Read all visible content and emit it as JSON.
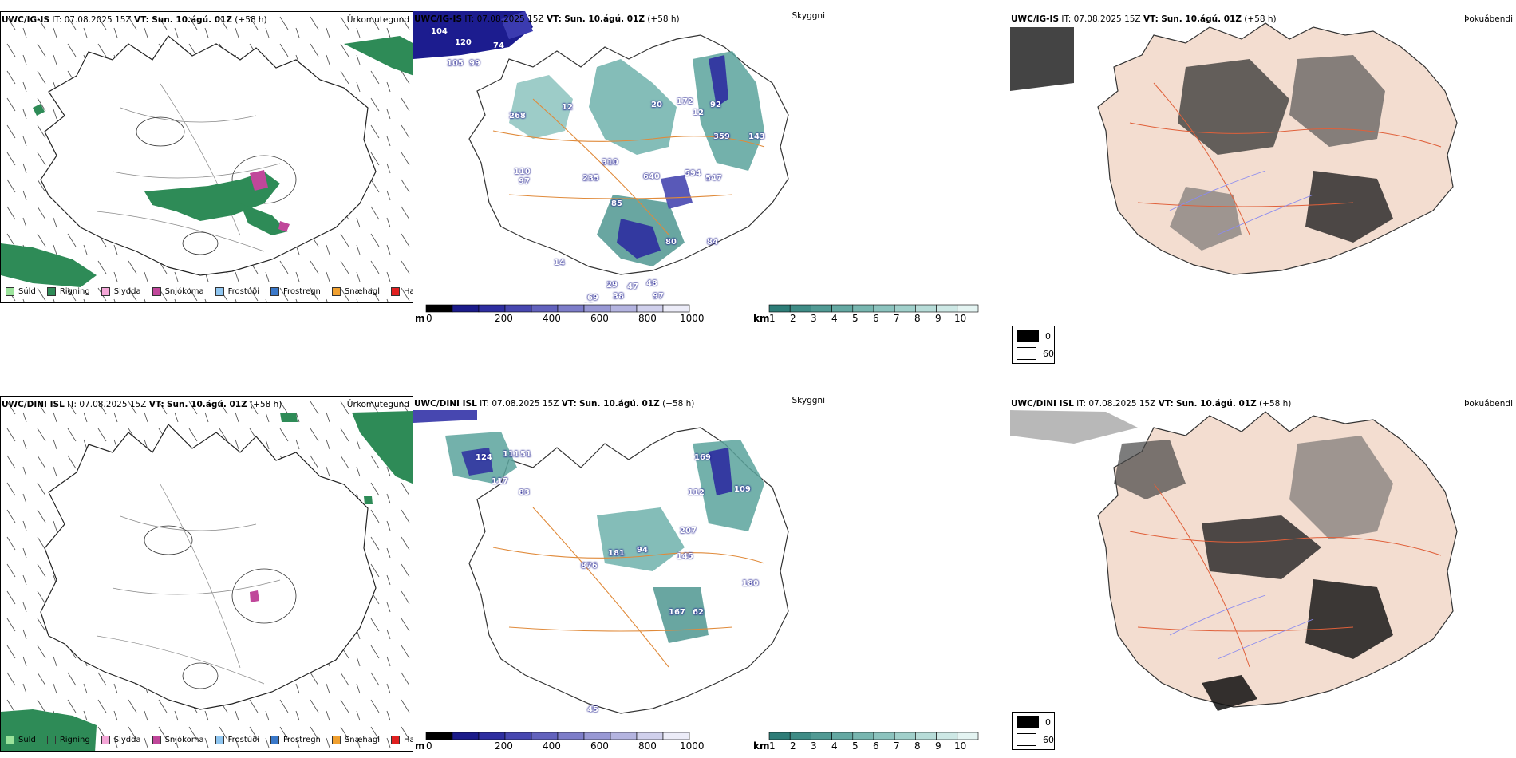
{
  "rows": [
    {
      "model": "UWC/IG-IS",
      "it_label": "IT:",
      "it_value": "07.08.2025 15Z",
      "vt_label": "VT:",
      "vt_value": "Sun. 10.ágú. 01Z",
      "lead": "(+58 h)",
      "precip_title": "Úrkomutegund",
      "cloud_title": "Skyggni",
      "fog_title": "Þokuábendi",
      "cloud_numbers": [
        "104",
        "120",
        "105",
        "99",
        "74",
        "268",
        "12",
        "20",
        "172",
        "12",
        "92",
        "359",
        "143",
        "110",
        "97",
        "235",
        "310",
        "640",
        "594",
        "547",
        "85",
        "14",
        "80",
        "84",
        "29",
        "38",
        "47",
        "48",
        "69",
        "97",
        "45",
        "34"
      ]
    },
    {
      "model": "UWC/DINI ISL",
      "it_label": "IT:",
      "it_value": "07.08.2025 15Z",
      "vt_label": "VT:",
      "vt_value": "Sun. 10.ágú. 01Z",
      "lead": "(+58 h)",
      "precip_title": "Úrkomutegund",
      "cloud_title": "Skyggni",
      "fog_title": "Þokuábendi",
      "cloud_numbers": [
        "124",
        "111",
        "51",
        "117",
        "83",
        "169",
        "109",
        "112",
        "207",
        "94",
        "181",
        "876",
        "145",
        "180",
        "167",
        "62",
        "45"
      ]
    }
  ],
  "precip_legend": [
    {
      "label": "Súld",
      "color": "#9be39b"
    },
    {
      "label": "Rigning",
      "color": "#2e8b57"
    },
    {
      "label": "Slydda",
      "color": "#f4a6d7"
    },
    {
      "label": "Snjókoma",
      "color": "#c0479a"
    },
    {
      "label": "Frostúði",
      "color": "#8ec5f0"
    },
    {
      "label": "Frostregn",
      "color": "#3a78c9"
    },
    {
      "label": "Snæhagl",
      "color": "#f0a030"
    },
    {
      "label": "Haglél",
      "color": "#e02020"
    }
  ],
  "ceiling_scale": {
    "unit": "m",
    "ticks": [
      "0",
      "200",
      "400",
      "600",
      "800",
      "1000"
    ],
    "colors": [
      "#000000",
      "#1b1b8a",
      "#2e2ea0",
      "#4747b0",
      "#6262bd",
      "#7d7dc9",
      "#9898d4",
      "#b4b4e0",
      "#d0d0ec",
      "#ececf8"
    ]
  },
  "visibility_scale": {
    "unit": "km",
    "ticks": [
      "1",
      "2",
      "3",
      "4",
      "5",
      "6",
      "7",
      "8",
      "9",
      "10"
    ],
    "colors": [
      "#2e7d78",
      "#3f8c86",
      "#519a94",
      "#64a8a2",
      "#78b6b0",
      "#8cc3be",
      "#a1d0cb",
      "#b7dcd8",
      "#cde8e5",
      "#e4f4f2"
    ]
  },
  "fog_scale": {
    "entries": [
      {
        "label": "0",
        "color": "#000000"
      },
      {
        "label": "60",
        "color": "#ffffff"
      }
    ]
  }
}
